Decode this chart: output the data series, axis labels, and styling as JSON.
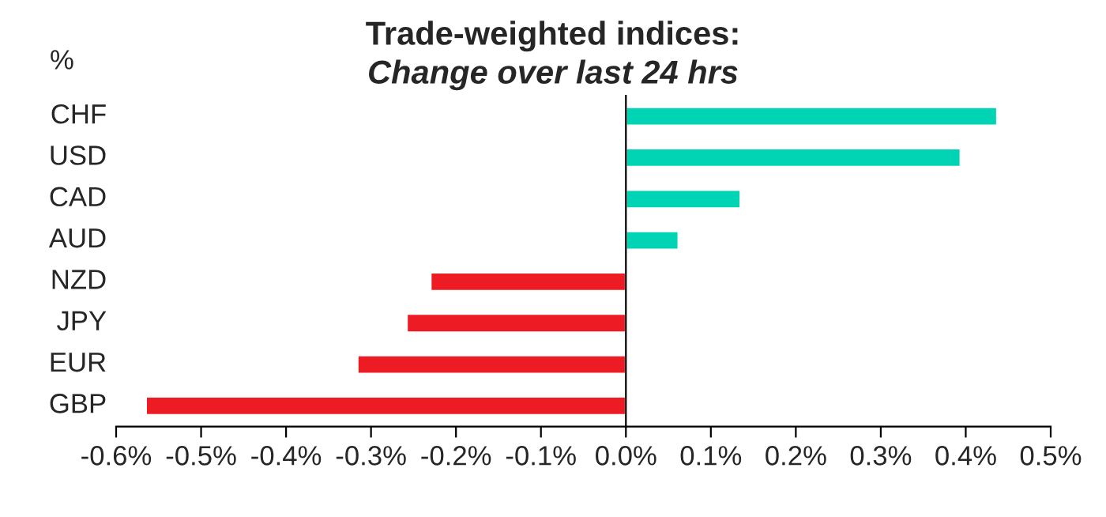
{
  "chart_data": {
    "type": "bar",
    "orientation": "horizontal",
    "title": "Trade-weighted indices:",
    "subtitle": "Change over last 24 hrs",
    "ylabel": "%",
    "categories": [
      "CHF",
      "USD",
      "CAD",
      "AUD",
      "NZD",
      "JPY",
      "EUR",
      "GBP"
    ],
    "values": [
      0.437,
      0.394,
      0.135,
      0.062,
      -0.23,
      -0.258,
      -0.316,
      -0.565
    ],
    "colors": [
      "#00d4b4",
      "#00d4b4",
      "#00d4b4",
      "#00d4b4",
      "#ed1c24",
      "#ed1c24",
      "#ed1c24",
      "#ed1c24"
    ],
    "xlim": [
      -0.6,
      0.5
    ],
    "xticks": [
      {
        "value": -0.6,
        "label": "-0.6%"
      },
      {
        "value": -0.5,
        "label": "-0.5%"
      },
      {
        "value": -0.4,
        "label": "-0.4%"
      },
      {
        "value": -0.3,
        "label": "-0.3%"
      },
      {
        "value": -0.2,
        "label": "-0.2%"
      },
      {
        "value": -0.1,
        "label": "-0.1%"
      },
      {
        "value": 0,
        "label": "0.0%"
      },
      {
        "value": 0.1,
        "label": "0.1%"
      },
      {
        "value": 0.2,
        "label": "0.2%"
      },
      {
        "value": 0.3,
        "label": "0.3%"
      },
      {
        "value": 0.4,
        "label": "0.4%"
      },
      {
        "value": 0.5,
        "label": "0.5%"
      }
    ]
  }
}
